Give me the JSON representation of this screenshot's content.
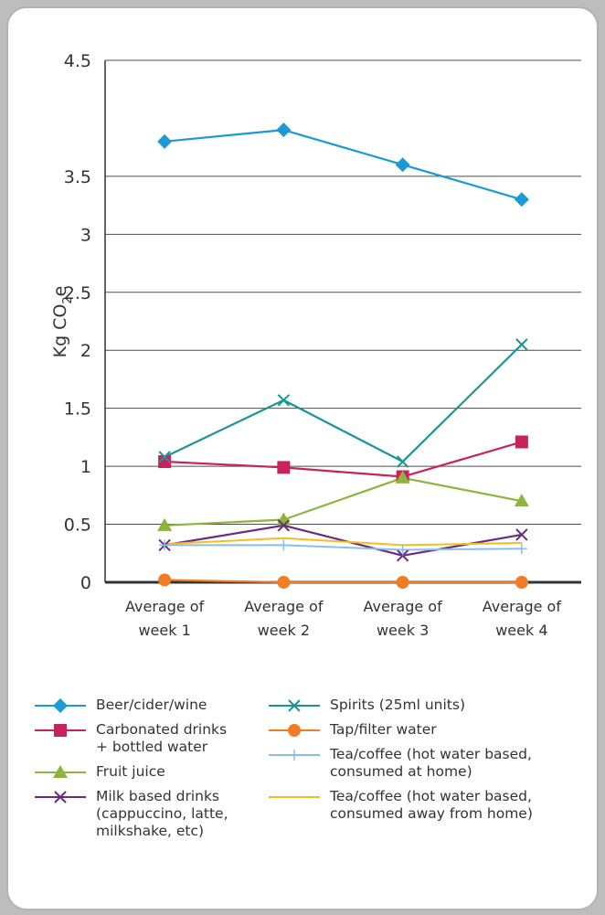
{
  "chart_data": {
    "type": "line",
    "title": "",
    "xlabel": "",
    "ylabel": "Kg CO",
    "ylabel_subscript": "2",
    "ylabel_suffix": "e",
    "ylim": [
      0,
      4.5
    ],
    "yticks": [
      "0",
      "0.5",
      "1",
      "1.5",
      "2",
      "2.5",
      "3",
      "3.5",
      "4.5"
    ],
    "categories": [
      [
        "Average of",
        "week 1"
      ],
      [
        "Average of",
        "week 2"
      ],
      [
        "Average of",
        "week 3"
      ],
      [
        "Average of",
        "week 4"
      ]
    ],
    "grid": true,
    "legend_position": "bottom",
    "series": [
      {
        "name": "Beer/cider/wine",
        "values": [
          3.8,
          3.9,
          3.6,
          3.3
        ],
        "color": "#1b9ad6",
        "marker": "diamond"
      },
      {
        "name": "Carbonated drinks\n+ bottled water",
        "values": [
          1.04,
          0.99,
          0.91,
          1.21
        ],
        "color": "#c8235a",
        "marker": "square"
      },
      {
        "name": "Fruit juice",
        "values": [
          0.49,
          0.54,
          0.9,
          0.7
        ],
        "color": "#8db43c",
        "marker": "triangle"
      },
      {
        "name": "Milk based drinks\n(cappuccino, latte,\nmilkshake, etc)",
        "values": [
          0.32,
          0.49,
          0.23,
          0.41
        ],
        "color": "#6a2c7e",
        "marker": "x"
      },
      {
        "name": "Spirits (25ml units)",
        "values": [
          1.08,
          1.57,
          1.04,
          2.05
        ],
        "color": "#1a9597",
        "marker": "x"
      },
      {
        "name": "Tap/filter water",
        "values": [
          0.02,
          0.0,
          0.0,
          0.0
        ],
        "color": "#f07d23",
        "marker": "circle"
      },
      {
        "name": "Tea/coffee (hot water based,\nconsumed at home)",
        "values": [
          0.32,
          0.32,
          0.28,
          0.29
        ],
        "color": "#8bbde6",
        "marker": "plus"
      },
      {
        "name": "Tea/coffee (hot water based,\nconsumed away from home)",
        "values": [
          0.33,
          0.38,
          0.32,
          0.34
        ],
        "color": "#f7be1a",
        "marker": "none"
      }
    ]
  }
}
